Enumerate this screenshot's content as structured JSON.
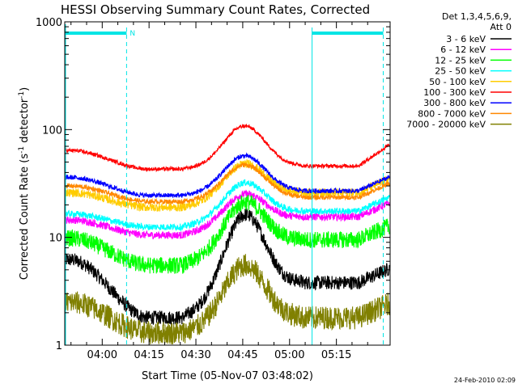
{
  "chart_data": {
    "type": "line",
    "title": "HESSI Observing Summary Count Rates, Corrected",
    "xlabel": "Start Time (05-Nov-07 03:48:02)",
    "ylabel_main": "Corrected Count Rate (s",
    "ylabel_sup1": "-1",
    "ylabel_mid": " detector",
    "ylabel_sup2": "-1",
    "ylabel_end": ")",
    "y_scale": "log",
    "ylim": [
      1,
      1000
    ],
    "xlim_minutes": [
      228,
      332.2
    ],
    "x_ticks": [
      {
        "t": 240,
        "label": "04:00"
      },
      {
        "t": 255,
        "label": "04:15"
      },
      {
        "t": 270,
        "label": "04:30"
      },
      {
        "t": 285,
        "label": "04:45"
      },
      {
        "t": 300,
        "label": "05:00"
      },
      {
        "t": 315,
        "label": "05:15"
      }
    ],
    "y_ticks": [
      {
        "v": 1,
        "label": "1"
      },
      {
        "v": 10,
        "label": "10"
      },
      {
        "v": 100,
        "label": "100"
      },
      {
        "v": 1000,
        "label": "1000"
      }
    ],
    "legend_header": [
      "Det 1,3,4,5,6,9,",
      "Att 0"
    ],
    "legend_placement": "right-outside",
    "timestamp": "24-Feb-2010 02:09",
    "saa_marker_label": "N",
    "night_intervals": [
      [
        228,
        247.8
      ],
      [
        307.2,
        330
      ]
    ],
    "series": [
      {
        "name": "3 - 6 keV",
        "color": "#000000",
        "base": 6.2,
        "peak": 16,
        "lo": 1.8,
        "hi": 3.8,
        "noise": 0.15
      },
      {
        "name": "6 - 12 keV",
        "color": "#ff00ff",
        "base": 14.5,
        "peak": 25,
        "lo": 10.5,
        "hi": 15.5,
        "noise": 0.08
      },
      {
        "name": "12 - 25 keV",
        "color": "#00ff00",
        "base": 9.8,
        "peak": 21,
        "lo": 5.5,
        "hi": 9.5,
        "noise": 0.18
      },
      {
        "name": "25 - 50 keV",
        "color": "#00ffff",
        "base": 16.5,
        "peak": 32,
        "lo": 12.5,
        "hi": 17.5,
        "noise": 0.07
      },
      {
        "name": "50 - 100 keV",
        "color": "#ffcc00",
        "base": 26,
        "peak": 48,
        "lo": 19,
        "hi": 26,
        "noise": 0.09
      },
      {
        "name": "100 - 300 keV",
        "color": "#ff0000",
        "base": 64,
        "peak": 108,
        "lo": 43,
        "hi": 46,
        "noise": 0.04
      },
      {
        "name": "300 - 800 keV",
        "color": "#0000ff",
        "base": 36,
        "peak": 57,
        "lo": 24.5,
        "hi": 27,
        "noise": 0.05
      },
      {
        "name": "800 - 7000 keV",
        "color": "#ff8800",
        "base": 30,
        "peak": 47,
        "lo": 21.5,
        "hi": 23.5,
        "noise": 0.05
      },
      {
        "name": "7000 - 20000 keV",
        "color": "#808000",
        "base": 2.5,
        "peak": 5.5,
        "lo": 1.3,
        "hi": 1.8,
        "noise": 0.25
      }
    ]
  }
}
